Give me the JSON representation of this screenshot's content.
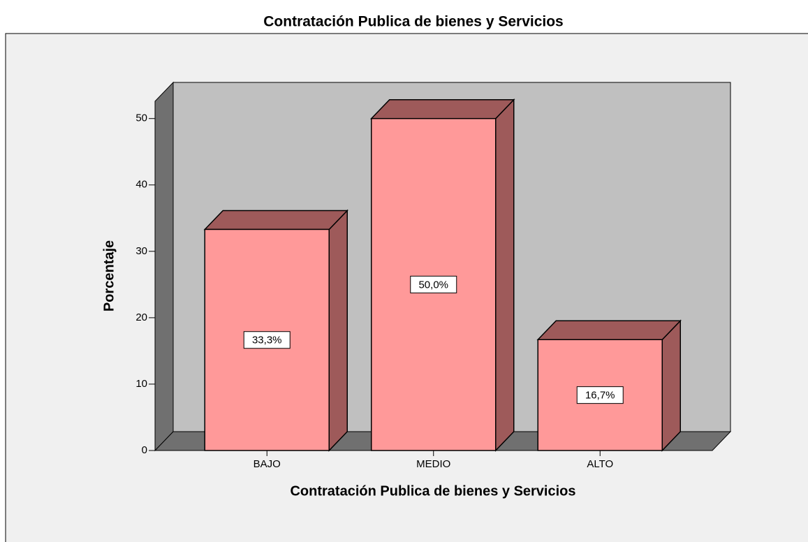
{
  "chart_data": {
    "type": "bar3d",
    "title": "Contratación Publica de bienes y Servicios",
    "xlabel": "Contratación Publica de bienes y Servicios",
    "ylabel": "Porcentaje",
    "categories": [
      "BAJO",
      "MEDIO",
      "ALTO"
    ],
    "values": [
      33.3,
      50.0,
      16.7
    ],
    "value_labels": [
      "33,3%",
      "50,0%",
      "16,7%"
    ],
    "color": "#ff9999",
    "ylim": [
      0,
      52.6
    ],
    "yticks": [
      0,
      10,
      20,
      30,
      40,
      50
    ]
  }
}
